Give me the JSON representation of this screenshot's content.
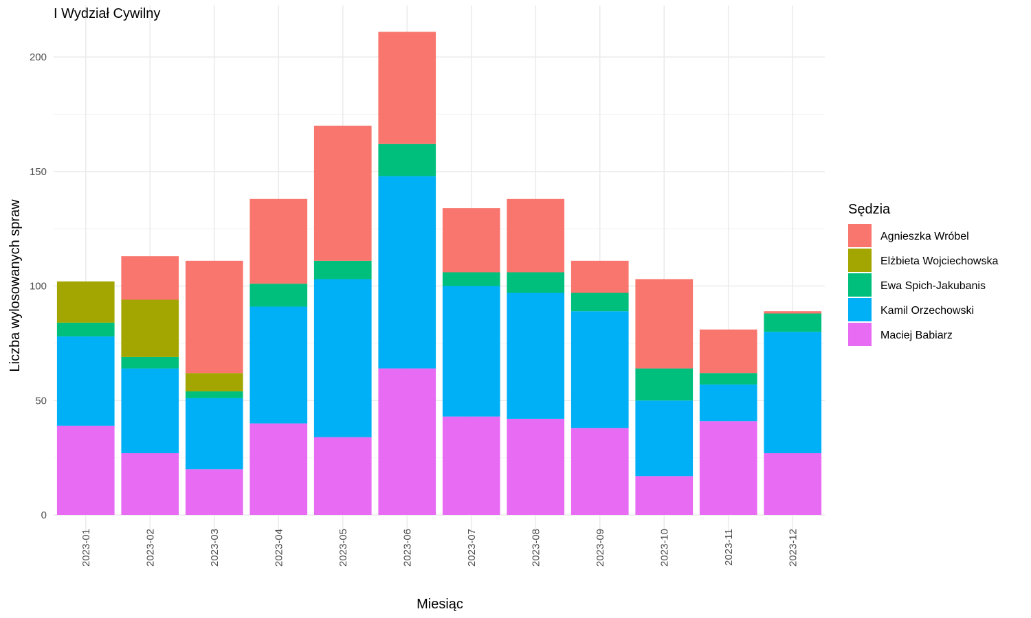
{
  "chart_data": {
    "type": "bar",
    "stacked": true,
    "title": "I Wydział Cywilny",
    "xlabel": "Miesiąc",
    "ylabel": "Liczba wylosowanych spraw",
    "ylim": [
      0,
      220
    ],
    "yticks": [
      0,
      50,
      100,
      150,
      200
    ],
    "grid": true,
    "legend_title": "Sędzia",
    "legend_position": "right",
    "categories": [
      "2023-01",
      "2023-02",
      "2023-03",
      "2023-04",
      "2023-05",
      "2023-06",
      "2023-07",
      "2023-08",
      "2023-09",
      "2023-10",
      "2023-11",
      "2023-12"
    ],
    "series": [
      {
        "name": "Maciej Babiarz",
        "color": "#E76BF3",
        "values": [
          39,
          27,
          20,
          40,
          34,
          64,
          43,
          42,
          38,
          17,
          41,
          27
        ]
      },
      {
        "name": "Kamil Orzechowski",
        "color": "#00B0F6",
        "values": [
          39,
          37,
          31,
          51,
          69,
          84,
          57,
          55,
          51,
          33,
          16,
          53
        ]
      },
      {
        "name": "Ewa Spich-Jakubanis",
        "color": "#00BF7D",
        "values": [
          6,
          5,
          3,
          10,
          8,
          14,
          6,
          9,
          8,
          14,
          5,
          8
        ]
      },
      {
        "name": "Elżbieta Wojciechowska",
        "color": "#A3A500",
        "values": [
          18,
          25,
          8,
          0,
          0,
          0,
          0,
          0,
          0,
          0,
          0,
          0
        ]
      },
      {
        "name": "Agnieszka Wróbel",
        "color": "#F8766D",
        "values": [
          0,
          19,
          49,
          37,
          59,
          49,
          28,
          32,
          14,
          39,
          19,
          1
        ]
      }
    ],
    "legend_order": [
      "Agnieszka Wróbel",
      "Elżbieta Wojciechowska",
      "Ewa Spich-Jakubanis",
      "Kamil Orzechowski",
      "Maciej Babiarz"
    ]
  }
}
